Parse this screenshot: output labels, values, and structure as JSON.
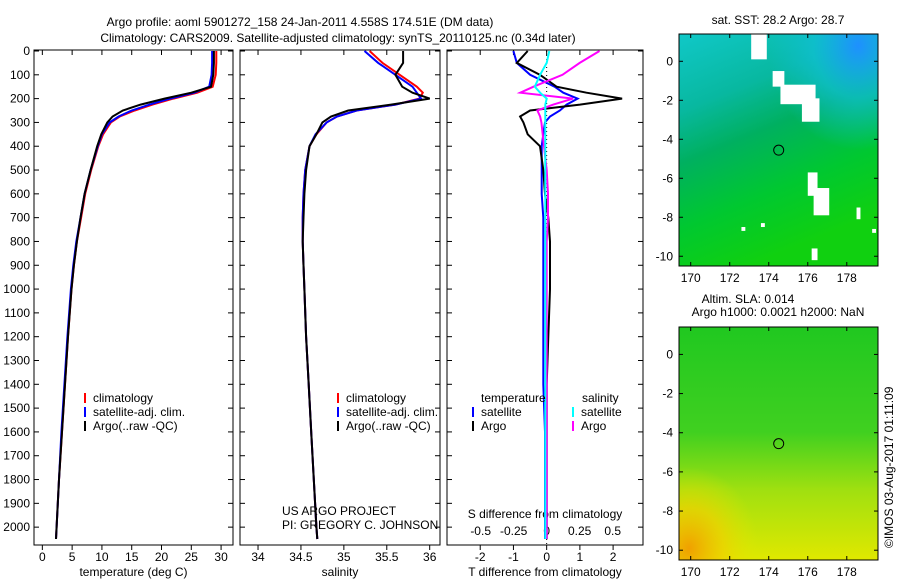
{
  "title_line1": "Argo profile: aoml 5901272_158 24-Jan-2011 4.558S 174.51E (DM data)",
  "title_line2": "Climatology: CARS2009. Satellite-adjusted climatology: synTS_20110125.nc (0.34d later)",
  "credit": "US ARGO PROJECT",
  "pi": "PI: GREGORY C. JOHNSON",
  "copyright": "©IMOS 03-Aug-2017 01:11:09",
  "colors": {
    "climatology": "#ff0000",
    "satellite": "#0000ff",
    "argo": "#000000",
    "sal_satellite": "#00ffff",
    "sal_argo": "#ff00ff"
  },
  "chart_data": [
    {
      "type": "line",
      "xlabel": "temperature (deg C)",
      "xlim": [
        -1.4,
        32
      ],
      "xticks": [
        "0",
        "5",
        "10",
        "15",
        "20",
        "25",
        "30"
      ],
      "xtick_values": [
        0,
        5,
        10,
        15,
        20,
        25,
        30
      ],
      "ylim": [
        2075,
        0
      ],
      "yticks": [
        "0",
        "100",
        "200",
        "300",
        "400",
        "500",
        "600",
        "700",
        "800",
        "900",
        "1000",
        "1100",
        "1200",
        "1300",
        "1400",
        "1500",
        "1600",
        "1700",
        "1800",
        "1900",
        "2000"
      ],
      "depth": [
        0,
        50,
        100,
        150,
        175,
        200,
        225,
        250,
        275,
        300,
        350,
        400,
        500,
        600,
        700,
        800,
        900,
        1000,
        1200,
        1400,
        1600,
        1800,
        2000,
        2050
      ],
      "legend": [
        "climatology",
        "satellite-adj. clim.",
        "Argo(..raw -QC)"
      ],
      "series": [
        {
          "name": "climatology",
          "color": "#ff0000",
          "values": [
            29.2,
            29.2,
            29.1,
            28.6,
            26,
            22,
            18.5,
            15.5,
            13,
            11.5,
            10.2,
            9.4,
            8.2,
            7.2,
            6.5,
            5.8,
            5.3,
            4.9,
            4.3,
            3.8,
            3.3,
            2.8,
            2.4,
            2.3
          ]
        },
        {
          "name": "satellite-adj. clim.",
          "color": "#0000ff",
          "values": [
            28.5,
            28.5,
            28.4,
            28.0,
            25.5,
            21.5,
            18,
            15,
            12.8,
            11.3,
            10.0,
            9.3,
            8.1,
            7.1,
            6.4,
            5.7,
            5.2,
            4.8,
            4.2,
            3.7,
            3.2,
            2.8,
            2.4,
            2.3
          ]
        },
        {
          "name": "Argo(..raw -QC)",
          "color": "#000000",
          "values": [
            28.8,
            28.8,
            28.7,
            28.3,
            25.0,
            20.5,
            16.5,
            13.5,
            11.8,
            10.9,
            9.9,
            9.2,
            8.1,
            7.1,
            6.4,
            5.8,
            5.3,
            4.9,
            4.3,
            3.8,
            3.3,
            2.8,
            2.4,
            2.3
          ]
        }
      ]
    },
    {
      "type": "line",
      "xlabel": "salinity",
      "xlim": [
        33.79,
        36.12
      ],
      "xticks": [
        "34",
        "34.5",
        "35",
        "35.5",
        "36"
      ],
      "xtick_values": [
        34,
        34.5,
        35,
        35.5,
        36
      ],
      "ylim": [
        2075,
        0
      ],
      "depth": [
        0,
        50,
        100,
        150,
        175,
        200,
        225,
        250,
        275,
        300,
        350,
        400,
        500,
        600,
        700,
        800,
        900,
        1000,
        1200,
        1400,
        1600,
        1800,
        2000,
        2050
      ],
      "legend": [
        "climatology",
        "satellite-adj. clim.",
        "Argo(..raw -QC)"
      ],
      "series": [
        {
          "name": "climatology",
          "color": "#ff0000",
          "values": [
            35.3,
            35.45,
            35.65,
            35.85,
            35.92,
            35.88,
            35.6,
            35.15,
            34.92,
            34.8,
            34.68,
            34.6,
            34.55,
            34.53,
            34.52,
            34.52,
            34.53,
            34.54,
            34.56,
            34.59,
            34.62,
            34.65,
            34.68,
            34.69
          ]
        },
        {
          "name": "satellite-adj. clim.",
          "color": "#0000ff",
          "values": [
            35.24,
            35.4,
            35.6,
            35.8,
            35.85,
            35.9,
            35.6,
            35.15,
            34.92,
            34.8,
            34.67,
            34.6,
            34.55,
            34.53,
            34.52,
            34.52,
            34.53,
            34.54,
            34.56,
            34.59,
            34.62,
            34.65,
            34.68,
            34.69
          ]
        },
        {
          "name": "Argo(..raw -QC)",
          "color": "#000000",
          "values": [
            35.69,
            35.69,
            35.6,
            35.68,
            35.8,
            36.0,
            35.55,
            35.05,
            34.85,
            34.75,
            34.68,
            34.6,
            34.56,
            34.54,
            34.53,
            34.52,
            34.53,
            34.54,
            34.56,
            34.59,
            34.62,
            34.65,
            34.68,
            34.69
          ]
        }
      ]
    },
    {
      "type": "line",
      "xlabel": "T difference from climatology",
      "xlabel2": "S difference from climatology",
      "xlim": [
        -3,
        2.9
      ],
      "xticks": [
        "-2",
        "-1",
        "0",
        "1",
        "2"
      ],
      "xtick_values": [
        -2,
        -1,
        0,
        1,
        2
      ],
      "xticks2": [
        "-0.5",
        "-0.25",
        "0",
        "0.25",
        "0.5"
      ],
      "xtick2_values": [
        -0.5,
        -0.25,
        0,
        0.25,
        0.5
      ],
      "ylim": [
        2075,
        0
      ],
      "depth": [
        0,
        50,
        100,
        150,
        175,
        200,
        225,
        250,
        275,
        300,
        350,
        400,
        500,
        600,
        700,
        800,
        900,
        1000,
        1200,
        1400,
        1600,
        1800,
        2000,
        2050
      ],
      "legend_headers": [
        "temperature",
        "salinity"
      ],
      "legend": [
        "satellite",
        "Argo",
        "satellite",
        "Argo"
      ],
      "series": [
        {
          "name": "T satellite",
          "axis": "T",
          "color": "#0000ff",
          "values": [
            -1.0,
            -0.9,
            -0.5,
            0.24,
            0.5,
            0.93,
            0.6,
            0.4,
            0.1,
            -0.05,
            -0.1,
            -0.15,
            -0.15,
            -0.15,
            -0.1,
            -0.1,
            -0.1,
            -0.1,
            -0.1,
            -0.1,
            -0.05,
            -0.05,
            -0.05,
            -0.05
          ]
        },
        {
          "name": "T Argo",
          "axis": "T",
          "color": "#000000",
          "values": [
            -0.57,
            -0.9,
            -0.2,
            0.3,
            1.2,
            2.27,
            1.0,
            -0.5,
            -0.8,
            -0.7,
            -0.57,
            -0.2,
            -0.1,
            -0.05,
            0.05,
            0.1,
            0.1,
            0.1,
            0.05,
            0,
            0,
            0,
            0,
            0
          ]
        },
        {
          "name": "S Argo",
          "axis": "S",
          "color": "#ff00ff",
          "values": [
            0.4,
            0.25,
            0.12,
            -0.1,
            -0.2,
            0.2,
            0.05,
            -0.07,
            -0.05,
            -0.04,
            -0.03,
            -0.02,
            0,
            0.01,
            0.01,
            0,
            0,
            0,
            0,
            0,
            0,
            0,
            0,
            0
          ]
        },
        {
          "name": "S satellite",
          "axis": "S",
          "color": "#00ffff",
          "values": [
            0.02,
            0,
            -0.05,
            -0.09,
            -0.05,
            0,
            -0.01,
            -0.01,
            -0.01,
            -0.01,
            -0.01,
            -0.01,
            -0.01,
            -0.01,
            -0.01,
            -0.01,
            -0.01,
            -0.01,
            -0.01,
            -0.01,
            -0.01,
            -0.01,
            -0.01,
            -0.01
          ]
        }
      ]
    },
    {
      "type": "heatmap",
      "title": "sat. SST: 28.2 Argo: 28.7",
      "xlim": [
        169.4,
        179.6
      ],
      "ylim": [
        1.4,
        -10.5
      ],
      "xticks": [
        "170",
        "172",
        "174",
        "176",
        "178"
      ],
      "xtick_values": [
        170,
        172,
        174,
        176,
        178
      ],
      "yticks": [
        "0",
        "-2",
        "-4",
        "-6",
        "-8",
        "-10"
      ],
      "ytick_values": [
        0,
        -2,
        -4,
        -6,
        -8,
        -10
      ],
      "marker": {
        "lon": 174.51,
        "lat": -4.558
      }
    },
    {
      "type": "heatmap",
      "title": "Altim. SLA: 0.014",
      "subtitle": "Argo h1000: 0.0021 h2000: NaN",
      "xlim": [
        169.4,
        179.6
      ],
      "ylim": [
        1.4,
        -10.5
      ],
      "xticks": [
        "170",
        "172",
        "174",
        "176",
        "178"
      ],
      "xtick_values": [
        170,
        172,
        174,
        176,
        178
      ],
      "yticks": [
        "0",
        "-2",
        "-4",
        "-6",
        "-8",
        "-10"
      ],
      "ytick_values": [
        0,
        -2,
        -4,
        -6,
        -8,
        -10
      ],
      "marker": {
        "lon": 174.51,
        "lat": -4.558
      }
    }
  ]
}
